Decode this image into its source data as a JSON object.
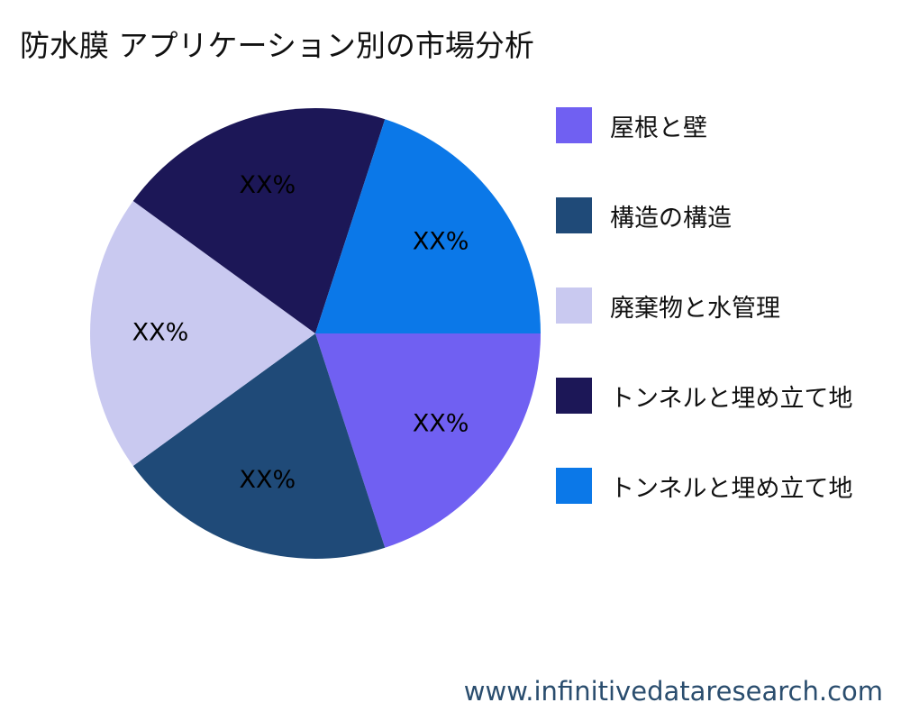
{
  "title": "防水膜 アプリケーション別の市場分析",
  "watermark": "www.infinitivedataresearch.com",
  "chart_data": {
    "type": "pie",
    "title": "防水膜 アプリケーション別の市場分析",
    "slices": [
      {
        "label": "屋根と壁",
        "value": 20,
        "data_label": "XX%",
        "color": "#7060f2"
      },
      {
        "label": "構造の構造",
        "value": 20,
        "data_label": "XX%",
        "color": "#1f4a78"
      },
      {
        "label": "廃棄物と水管理",
        "value": 20,
        "data_label": "XX%",
        "color": "#c9c9f0"
      },
      {
        "label": "トンネルと埋め立て地",
        "value": 20,
        "data_label": "XX%",
        "color": "#1c1757"
      },
      {
        "label": "トンネルと埋め立て地",
        "value": 20,
        "data_label": "XX%",
        "color": "#0b78e8"
      }
    ],
    "legend_position": "right",
    "start_angle_deg": 0,
    "direction": "clockwise"
  }
}
